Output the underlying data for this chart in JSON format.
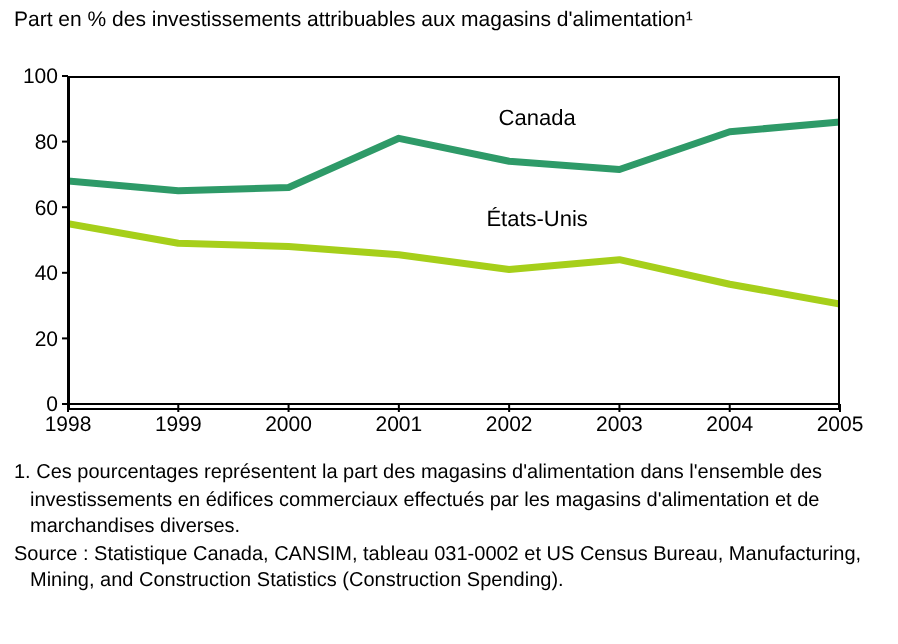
{
  "chart_data": {
    "type": "line",
    "title": "Part en % des investissements attribuables aux magasins d'alimentation¹",
    "x": [
      1998,
      1999,
      2000,
      2001,
      2002,
      2003,
      2004,
      2005
    ],
    "series": [
      {
        "name": "Canada",
        "color": "#2e9a68",
        "values": [
          68,
          65,
          66,
          81,
          74,
          71.5,
          83,
          86
        ]
      },
      {
        "name": "États-Unis",
        "color": "#a6cf1a",
        "values": [
          55,
          49,
          48,
          45.5,
          41,
          44,
          36.5,
          30.5
        ]
      }
    ],
    "xlim": [
      1998,
      2005
    ],
    "xticks": [
      1998,
      1999,
      2000,
      2001,
      2002,
      2003,
      2004,
      2005
    ],
    "ylim": [
      0,
      100
    ],
    "yticks": [
      0,
      20,
      40,
      60,
      80,
      100
    ],
    "grid": false,
    "legend": false,
    "marker": "none",
    "line_style": "solid",
    "annotations": [
      "1. Ces pourcentages représentent la part des magasins d'alimentation dans l'ensemble des investissements en édifices commerciaux effectués par les magasins d'alimentation et de marchandises diverses.",
      "Source : Statistique Canada, CANSIM, tableau 031-0002 et US Census Bureau, Manufacturing, Mining, and Construction Statistics (Construction Spending)."
    ]
  }
}
